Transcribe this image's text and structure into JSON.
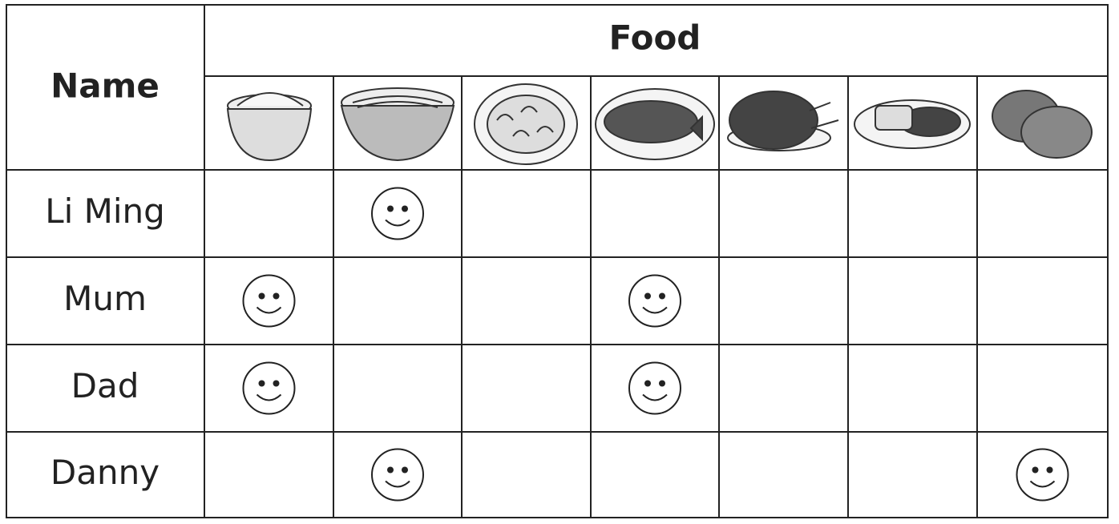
{
  "table": {
    "header": {
      "name": "Name",
      "food": "Food"
    },
    "rows": [
      {
        "name": "Li Ming",
        "likes": [
          false,
          true,
          false,
          false,
          false,
          false,
          false
        ]
      },
      {
        "name": "Mum",
        "likes": [
          true,
          false,
          false,
          true,
          false,
          false,
          false
        ]
      },
      {
        "name": "Dad",
        "likes": [
          true,
          false,
          false,
          true,
          false,
          false,
          false
        ]
      },
      {
        "name": "Danny",
        "likes": [
          false,
          true,
          false,
          false,
          false,
          false,
          true
        ]
      }
    ]
  }
}
